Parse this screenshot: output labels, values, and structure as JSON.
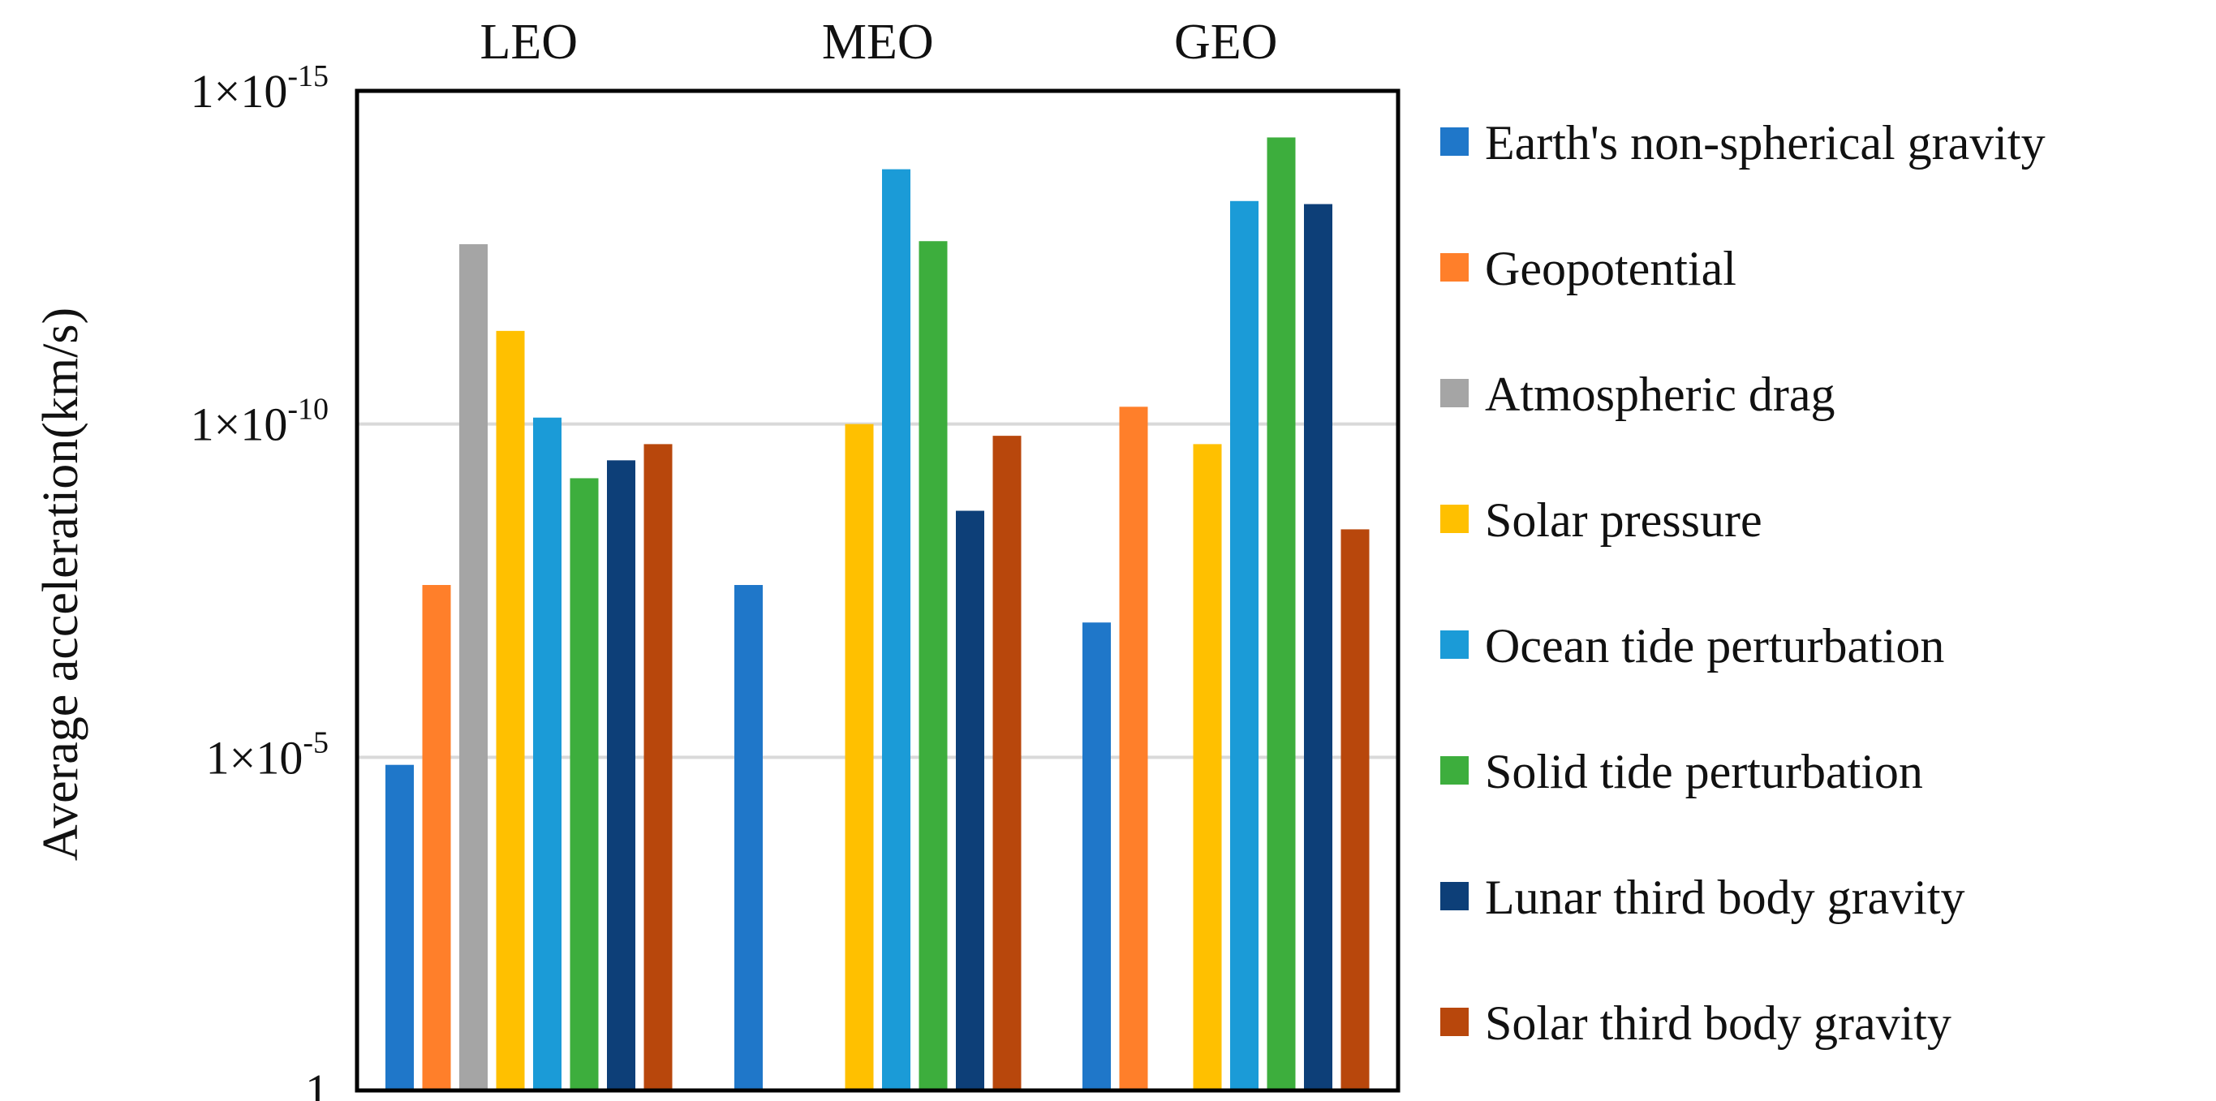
{
  "chart_data": {
    "type": "bar",
    "title": "",
    "xlabel": "",
    "ylabel": "Average acceleration(km/s)",
    "y_scale": "log",
    "ylim": [
      1e-15,
      1
    ],
    "y_ticks": [
      {
        "value": 1e-15,
        "label_base": "1×10",
        "label_exp": "-15"
      },
      {
        "value": 1e-10,
        "label_base": "1×10",
        "label_exp": "-10"
      },
      {
        "value": 1e-05,
        "label_base": "1×10",
        "label_exp": "-5"
      },
      {
        "value": 1,
        "label_base": "1",
        "label_exp": ""
      }
    ],
    "grid": true,
    "legend_position": "right",
    "categories": [
      "LEO",
      "MEO",
      "GEO"
    ],
    "series": [
      {
        "name": "Earth's non-spherical gravity",
        "color": "#1F77C9",
        "values": [
          1.3e-05,
          2.6e-08,
          9.5e-08
        ]
      },
      {
        "name": "Geopotential",
        "color": "#FF7F2A",
        "values": [
          2.6e-08,
          null,
          5.5e-11
        ]
      },
      {
        "name": "Atmospheric drag",
        "color": "#A5A5A5",
        "values": [
          2e-13,
          null,
          null
        ]
      },
      {
        "name": "Solar pressure",
        "color": "#FFC000",
        "values": [
          4e-12,
          1e-10,
          2e-10
        ]
      },
      {
        "name": "Ocean tide perturbation",
        "color": "#1B9BD7",
        "values": [
          8e-11,
          1.5e-14,
          4.5e-14
        ]
      },
      {
        "name": "Solid tide perturbation",
        "color": "#3DAE3D",
        "values": [
          6.5e-10,
          1.8e-13,
          5e-15
        ]
      },
      {
        "name": "Lunar third body gravity",
        "color": "#0D3F78",
        "values": [
          3.5e-10,
          2e-09,
          5e-14
        ]
      },
      {
        "name": "Solar third body gravity",
        "color": "#B8470C",
        "values": [
          2e-10,
          1.5e-10,
          3.8e-09
        ]
      }
    ]
  }
}
